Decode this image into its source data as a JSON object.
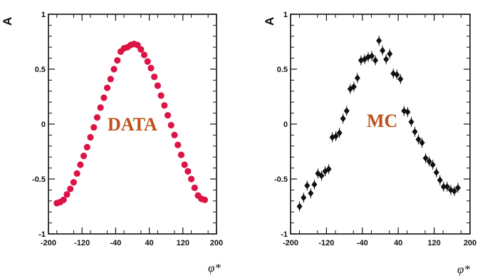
{
  "chart_data": [
    {
      "type": "scatter",
      "ylabel": "A",
      "xlabel": "φ*",
      "xlim": [
        -200,
        200
      ],
      "ylim": [
        -1,
        1
      ],
      "xticks": [
        -200,
        -120,
        -40,
        40,
        120,
        200
      ],
      "yticks": [
        -1,
        -0.5,
        0,
        0.5,
        1
      ],
      "xtick_labels": [
        "-200",
        "-120",
        "-40",
        "40",
        "120",
        "200"
      ],
      "ytick_labels": [
        "-1",
        "-0.5",
        "0",
        "0.5",
        "1"
      ],
      "annotation": "DATA",
      "annotation_color": "#c0501a",
      "marker": "circle",
      "marker_color": "#dc1446",
      "grid": false,
      "series": [
        {
          "x": [
            -180,
            -172,
            -164,
            -156,
            -148,
            -140,
            -132,
            -124,
            -116,
            -108,
            -100,
            -92,
            -84,
            -76,
            -68,
            -60,
            -52,
            -44,
            -36,
            -28,
            -20,
            -12,
            -4,
            4,
            12,
            20,
            28,
            36,
            44,
            52,
            60,
            68,
            76,
            84,
            92,
            100,
            108,
            116,
            124,
            132,
            140,
            148,
            156,
            164,
            172
          ],
          "y": [
            -0.72,
            -0.71,
            -0.69,
            -0.64,
            -0.59,
            -0.53,
            -0.45,
            -0.37,
            -0.29,
            -0.21,
            -0.12,
            -0.03,
            0.06,
            0.15,
            0.24,
            0.33,
            0.41,
            0.5,
            0.58,
            0.66,
            0.69,
            0.7,
            0.72,
            0.73,
            0.72,
            0.68,
            0.63,
            0.57,
            0.51,
            0.43,
            0.35,
            0.26,
            0.17,
            0.08,
            -0.01,
            -0.1,
            -0.19,
            -0.28,
            -0.37,
            -0.43,
            -0.5,
            -0.58,
            -0.65,
            -0.68,
            -0.69
          ]
        }
      ]
    },
    {
      "type": "scatter",
      "ylabel": "A",
      "xlabel": "φ*",
      "xlim": [
        -200,
        200
      ],
      "ylim": [
        -1,
        1
      ],
      "xticks": [
        -200,
        -120,
        -40,
        40,
        120,
        200
      ],
      "yticks": [
        -1,
        -0.5,
        0,
        0.5,
        1
      ],
      "xtick_labels": [
        "-200",
        "-120",
        "-40",
        "40",
        "120",
        "200"
      ],
      "ytick_labels": [
        "-1",
        "-0.5",
        "0",
        "0.5",
        "1"
      ],
      "annotation": "MC",
      "annotation_color": "#c0501a",
      "marker": "diamond",
      "marker_color": "#111111",
      "grid": false,
      "series": [
        {
          "x": [
            -180,
            -171,
            -163,
            -155,
            -147,
            -139,
            -131,
            -123,
            -115,
            -107,
            -99,
            -91,
            -83,
            -75,
            -67,
            -59,
            -51,
            -43,
            -35,
            -27,
            -19,
            -11,
            -3,
            5,
            13,
            21,
            29,
            37,
            45,
            53,
            61,
            69,
            77,
            85,
            93,
            101,
            109,
            117,
            125,
            133,
            141,
            149,
            157,
            165,
            173
          ],
          "y": [
            -0.75,
            -0.67,
            -0.56,
            -0.63,
            -0.55,
            -0.45,
            -0.47,
            -0.43,
            -0.41,
            -0.12,
            -0.11,
            -0.08,
            0.05,
            0.12,
            0.32,
            0.34,
            0.42,
            0.58,
            0.59,
            0.61,
            0.62,
            0.58,
            0.76,
            0.67,
            0.59,
            0.64,
            0.46,
            0.45,
            0.41,
            0.12,
            0.11,
            0.02,
            -0.07,
            -0.14,
            -0.17,
            -0.31,
            -0.34,
            -0.37,
            -0.44,
            -0.51,
            -0.57,
            -0.57,
            -0.6,
            -0.61,
            -0.58
          ]
        }
      ]
    }
  ]
}
